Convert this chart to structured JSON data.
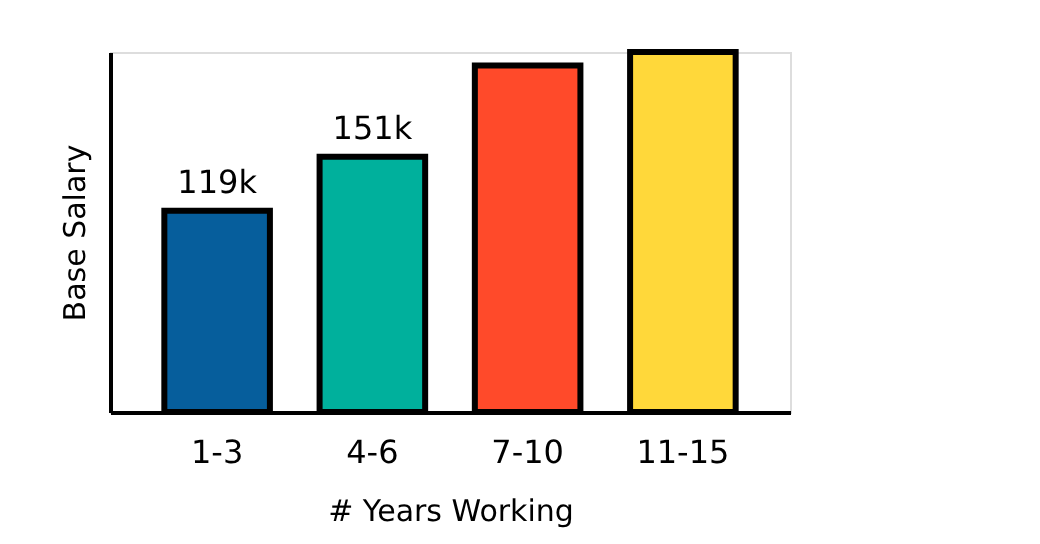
{
  "chart_data": {
    "type": "bar",
    "xlabel": "# Years Working",
    "ylabel": "Base Salary",
    "categories": [
      "1-3",
      "4-6",
      "7-10",
      "11-15"
    ],
    "values": [
      119,
      151,
      205,
      213
    ],
    "colors": [
      "#065e9c",
      "#00b09c",
      "#ff4a2a",
      "#ffd83a"
    ],
    "value_labels": [
      "119k",
      "151k",
      null,
      null
    ],
    "ylim": [
      0,
      213
    ],
    "tick_labels": "x",
    "grid": false
  }
}
